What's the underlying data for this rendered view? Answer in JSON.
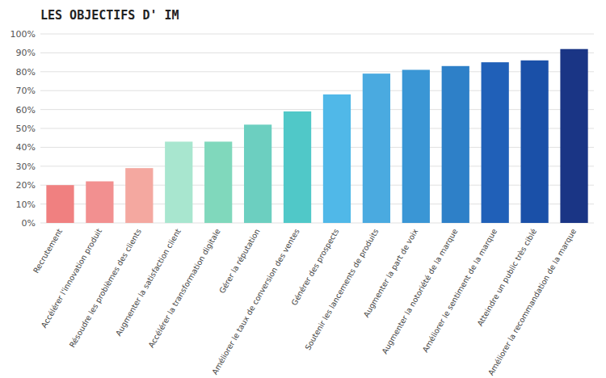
{
  "chart_data": {
    "type": "bar",
    "title": "LES OBJECTIFS D' IM",
    "categories": [
      "Recrutement",
      "Accélérer l'innovation produit",
      "Résoudre les problèmes des clients",
      "Augmenter la satisfaction client",
      "Accélérer la transformation digitale",
      "Gérer la réputation",
      "Améliorer le taux de conversion des ventes",
      "Générer des prospects",
      "Soutenir les lancements de produits",
      "Augmenter la part de voix",
      "Augmenter la notoriété de la marque",
      "Améliorer le sentiment de la marque",
      "Atteindre un public très ciblé",
      "Améliorer la recommandation de la marque"
    ],
    "values": [
      20,
      22,
      29,
      43,
      43,
      52,
      59,
      68,
      79,
      81,
      83,
      85,
      86,
      92
    ],
    "colors": [
      "#F08080",
      "#F29090",
      "#F4A8A0",
      "#A8E6CF",
      "#80D8BC",
      "#6CCFC0",
      "#50C8C8",
      "#50B8E8",
      "#4AAAE0",
      "#3A96D5",
      "#2E80C8",
      "#2060B8",
      "#1A50A8",
      "#1A3585"
    ],
    "ylim": [
      0,
      100
    ],
    "yticks": [
      {
        "value": 0,
        "label": "0%"
      },
      {
        "value": 10,
        "label": "10%"
      },
      {
        "value": 20,
        "label": "20%"
      },
      {
        "value": 30,
        "label": "30%"
      },
      {
        "value": 40,
        "label": "40%"
      },
      {
        "value": 50,
        "label": "50%"
      },
      {
        "value": 60,
        "label": "60%"
      },
      {
        "value": 70,
        "label": "70%"
      },
      {
        "value": 80,
        "label": "80%"
      },
      {
        "value": 90,
        "label": "90%"
      },
      {
        "value": 100,
        "label": "100%"
      }
    ],
    "grid": true
  }
}
